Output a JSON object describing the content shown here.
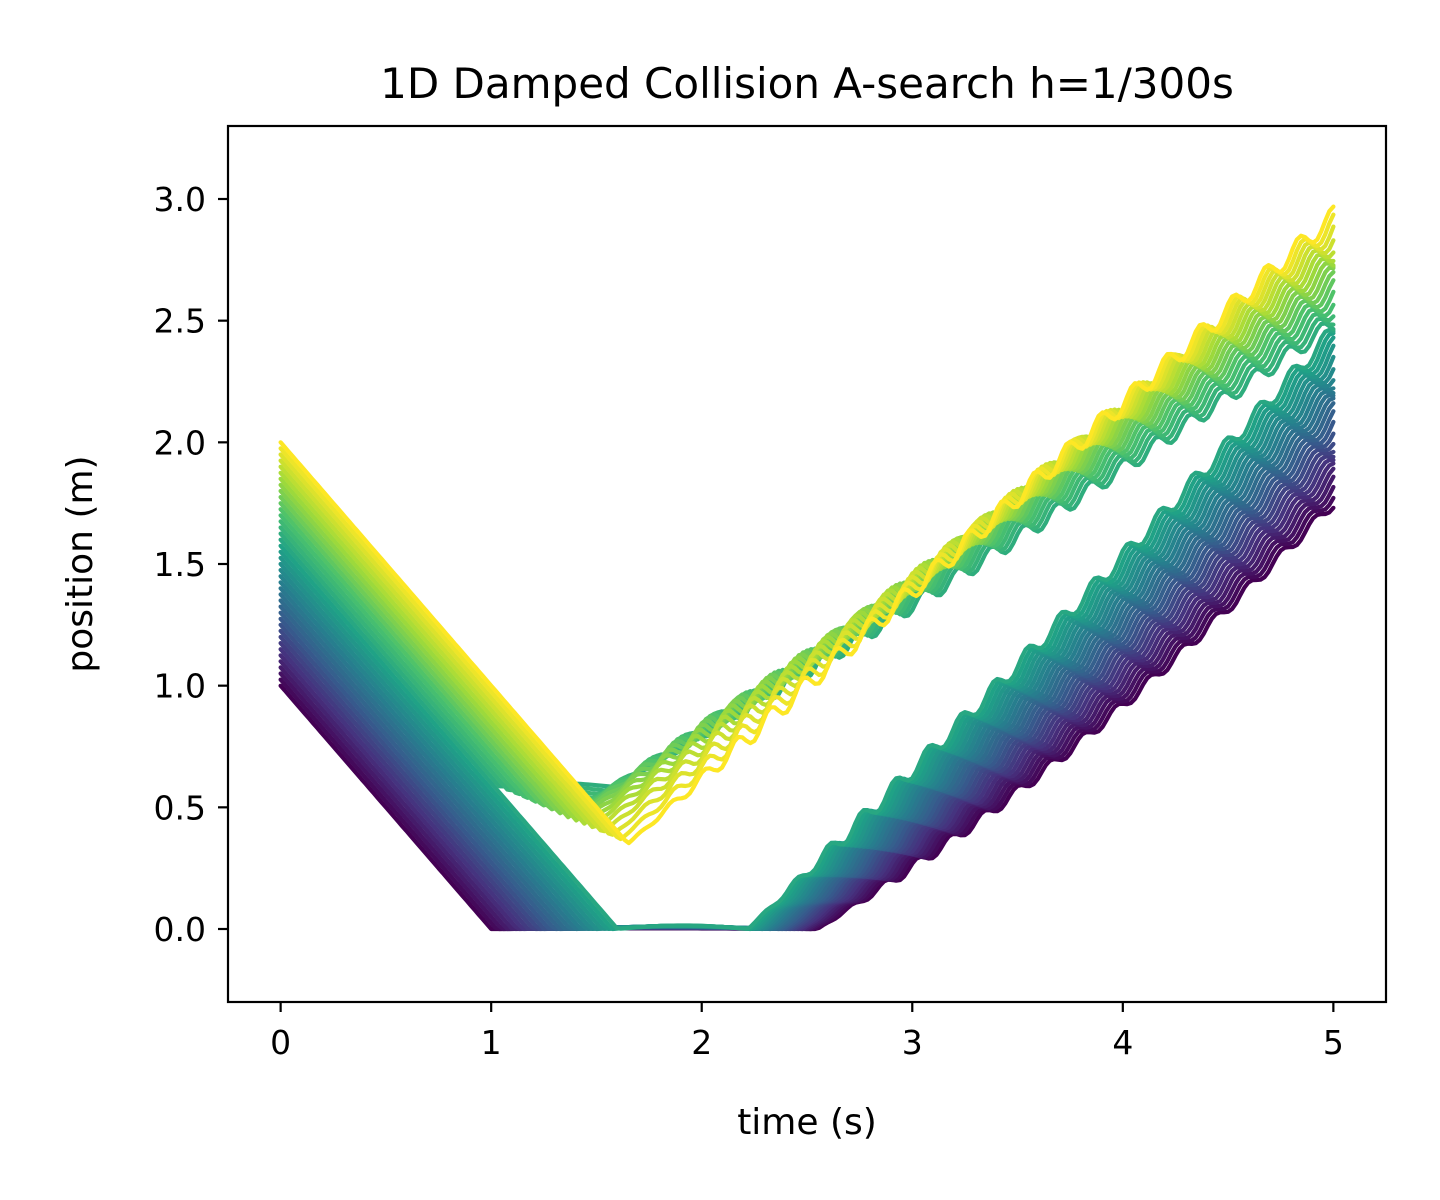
{
  "chart_data": {
    "type": "line",
    "title": "1D Damped Collision A-search h=1/300s",
    "xlabel": "time (s)",
    "ylabel": "position (m)",
    "xlim": [
      -0.25,
      5.25
    ],
    "ylim": [
      -0.3,
      3.3
    ],
    "xticks": [
      0,
      1,
      2,
      3,
      4,
      5
    ],
    "xtick_labels": [
      "0",
      "1",
      "2",
      "3",
      "4",
      "5"
    ],
    "yticks": [
      0.0,
      0.5,
      1.0,
      1.5,
      2.0,
      2.5,
      3.0
    ],
    "ytick_labels": [
      "0.0",
      "0.5",
      "1.0",
      "1.5",
      "2.0",
      "2.5",
      "3.0"
    ],
    "grid": false,
    "legend": "none",
    "colormap": "viridis",
    "colormap_stops": [
      "#440154",
      "#46327e",
      "#365c8d",
      "#277f8e",
      "#1fa187",
      "#4ac16d",
      "#a0da39",
      "#fde725"
    ],
    "series_family": {
      "count": 41,
      "initial_position_range": [
        1.0,
        2.0
      ],
      "approach_velocity": -1.0,
      "floor_contact_time_range": [
        1.0,
        2.0
      ],
      "rest_duration_range": [
        1.55,
        0.0
      ],
      "final_position_range": [
        1.75,
        2.93
      ],
      "end_time": 5.0
    },
    "series": [
      {
        "x": [
          0,
          1.0,
          2.55,
          3.0,
          3.5,
          4.0,
          4.3,
          4.6,
          5.0
        ],
        "y": [
          1.0,
          0.0,
          0.02,
          0.36,
          0.82,
          1.25,
          1.4,
          1.45,
          1.75
        ]
      },
      {
        "x": [
          0,
          1.25,
          2.4,
          3.0,
          3.5,
          4.0,
          4.4,
          4.7,
          5.0
        ],
        "y": [
          1.25,
          0.0,
          0.08,
          0.58,
          1.03,
          1.42,
          1.58,
          1.7,
          2.02
        ]
      },
      {
        "x": [
          0,
          1.5,
          2.1,
          2.5,
          3.0,
          3.5,
          4.0,
          4.5,
          5.0
        ],
        "y": [
          1.5,
          0.0,
          0.12,
          0.48,
          0.92,
          1.3,
          1.66,
          1.95,
          2.32
        ]
      },
      {
        "x": [
          0,
          1.75,
          1.85,
          2.5,
          3.0,
          3.5,
          4.0,
          4.5,
          5.0
        ],
        "y": [
          1.75,
          0.0,
          0.05,
          0.66,
          1.17,
          1.55,
          1.93,
          2.3,
          2.62
        ]
      },
      {
        "x": [
          0,
          1.65,
          2.0,
          2.5,
          3.0,
          3.3,
          3.6,
          4.0,
          4.5,
          5.0
        ],
        "y": [
          2.0,
          0.35,
          0.62,
          1.03,
          1.53,
          1.73,
          1.82,
          2.12,
          2.5,
          2.93
        ]
      }
    ]
  }
}
